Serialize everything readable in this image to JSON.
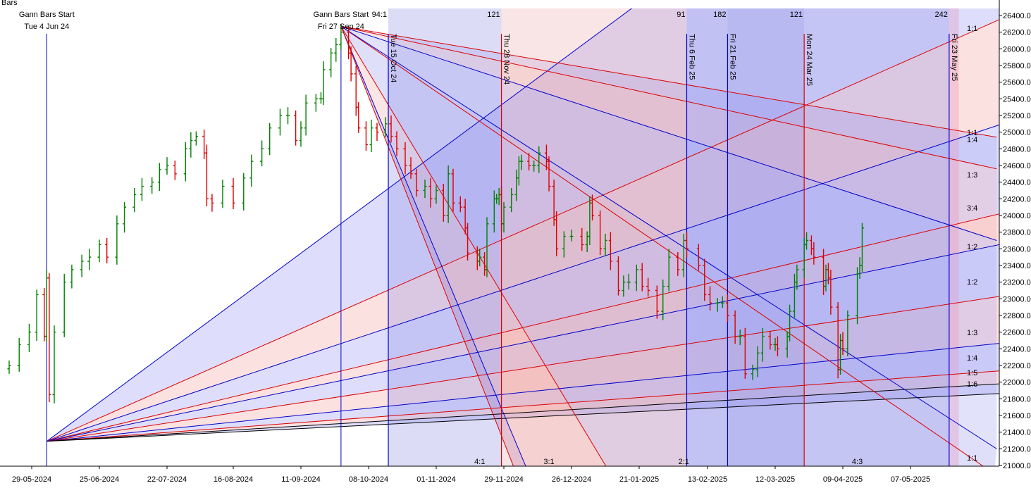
{
  "chart_data": {
    "type": "bar",
    "chart_style": "OHLC bars with Gann fans",
    "top_left_label": "Bars",
    "xlim": [
      "2024-05-18",
      "2025-05-31"
    ],
    "ylim": [
      20900,
      26500
    ],
    "y_axis": {
      "position": "right",
      "ticks": [
        21000,
        21200,
        21400,
        21600,
        21800,
        22000,
        22200,
        22400,
        22600,
        22800,
        23000,
        23200,
        23400,
        23600,
        23800,
        24000,
        24200,
        24400,
        24600,
        24800,
        25000,
        25200,
        25400,
        25600,
        25800,
        26000,
        26200,
        26400
      ],
      "tick_labels": [
        "21000.00",
        "21200.00",
        "21400.00",
        "21600.00",
        "21800.00",
        "22000.00",
        "22200.00",
        "22400.00",
        "22600.00",
        "22800.00",
        "23000.00",
        "23200.00",
        "23400.00",
        "23600.00",
        "23800.00",
        "24000.00",
        "24200.00",
        "24400.00",
        "24600.00",
        "24800.00",
        "25000.00",
        "25200.00",
        "25400.00",
        "25600.00",
        "25800.00",
        "26000.00",
        "26200.00",
        "26400.00"
      ]
    },
    "x_axis": {
      "tick_dates": [
        "2024-05-29",
        "2024-06-25",
        "2024-07-22",
        "2024-08-16",
        "2024-09-11",
        "2024-10-08",
        "2024-11-01",
        "2024-11-29",
        "2024-12-26",
        "2025-01-21",
        "2025-02-13",
        "2025-03-12",
        "2025-04-09",
        "2025-05-07"
      ],
      "tick_labels": [
        "29-05-2024",
        "25-06-2024",
        "22-07-2024",
        "16-08-2024",
        "11-09-2024",
        "08-10-2024",
        "01-11-2024",
        "29-11-2024",
        "26-12-2024",
        "21-01-2025",
        "13-02-2025",
        "12-03-2025",
        "09-04-2025",
        "07-05-2025"
      ]
    },
    "gann_starts": [
      {
        "title": "Gann Bars Start",
        "date_label": "Tue 4 Jun 24",
        "date": "2024-06-04",
        "price": 21290
      },
      {
        "title": "Gann Bars Start",
        "date_label": "Fri 27 Sep 24",
        "date": "2024-09-27",
        "price": 26270
      }
    ],
    "time_lines": [
      {
        "date": "2024-10-15",
        "label": "Tue 15 Oct 24",
        "color": "#0000cc"
      },
      {
        "date": "2024-11-28",
        "label": "Thu 28 Nov 24",
        "color": "#dd0000"
      },
      {
        "date": "2025-02-06",
        "label": "Thu 6 Feb 25",
        "color": "#0000cc"
      },
      {
        "date": "2025-02-21",
        "label": "Fri 21 Feb 25",
        "color": "#0000cc"
      },
      {
        "date": "2025-03-24",
        "label": "Mon 24 Mar 25",
        "color": "#dd0000"
      },
      {
        "date": "2025-05-23",
        "label": "Fri 23 May 25",
        "color": "#0000cc"
      }
    ],
    "bar_counts": [
      {
        "date": "2024-10-15",
        "label": "94:1"
      },
      {
        "date": "2024-11-28",
        "label": "121"
      },
      {
        "date": "2025-02-06",
        "label": "91"
      },
      {
        "date": "2025-02-21",
        "label": "182"
      },
      {
        "date": "2025-03-24",
        "label": "121"
      },
      {
        "date": "2025-05-23",
        "label": "242"
      }
    ],
    "bottom_fan_angles": {
      "ratios": [
        "4:1",
        "3:1",
        "2:1",
        "1:1",
        "4:3"
      ],
      "end_prices": [
        30000,
        26500,
        25200,
        24100,
        23720,
        23080,
        22500,
        22160,
        22000,
        21880
      ],
      "colors": [
        "#0000cc",
        "#dd0000",
        "#0000cc",
        "#dd0000",
        "#0000cc",
        "#dd0000",
        "#0000cc",
        "#dd0000",
        "#000000",
        "#000000"
      ]
    },
    "top_fan_angles": {
      "ratios": [
        "1:1",
        "1:4",
        "1:3",
        "3:4",
        "1:2",
        "1:2",
        "1:3",
        "1:4",
        "1:5",
        "1:6",
        "1:1",
        "1:1"
      ],
      "lines": [
        {
          "to_date": "2024-12-09",
          "to_price": 20900,
          "color": "#0000cc"
        },
        {
          "to_date": "2024-12-04",
          "to_price": 20900,
          "color": "#dd0000"
        },
        {
          "to_date": "2025-01-10",
          "to_price": 20900,
          "color": "#dd0000"
        },
        {
          "to_date": "2025-05-30",
          "to_price": 20900,
          "color": "#dd0000"
        },
        {
          "to_date": "2025-05-31",
          "to_price": 21200,
          "color": "#0000cc"
        },
        {
          "to_date": "2025-05-31",
          "to_price": 23700,
          "color": "#0000cc"
        },
        {
          "to_date": "2025-05-31",
          "to_price": 24560,
          "color": "#dd0000"
        },
        {
          "to_date": "2025-05-31",
          "to_price": 24940,
          "color": "#dd0000"
        }
      ]
    },
    "colors": {
      "up": "#008000",
      "down": "#dd0000",
      "blue_line": "#0000cc",
      "red_line": "#dd0000",
      "grid_bg": "#ffffff"
    },
    "daily_closes": [
      {
        "d": "2024-05-20",
        "c": 22200
      },
      {
        "d": "2024-05-24",
        "c": 22450
      },
      {
        "d": "2024-05-28",
        "c": 22600
      },
      {
        "d": "2024-05-31",
        "c": 23050
      },
      {
        "d": "2024-06-03",
        "c": 22550
      },
      {
        "d": "2024-06-04",
        "c": 23250
      },
      {
        "d": "2024-06-05",
        "c": 21850
      },
      {
        "d": "2024-06-07",
        "c": 22600
      },
      {
        "d": "2024-06-11",
        "c": 23200
      },
      {
        "d": "2024-06-14",
        "c": 23350
      },
      {
        "d": "2024-06-18",
        "c": 23450
      },
      {
        "d": "2024-06-21",
        "c": 23500
      },
      {
        "d": "2024-06-25",
        "c": 23650
      },
      {
        "d": "2024-06-28",
        "c": 23500
      },
      {
        "d": "2024-07-02",
        "c": 23900
      },
      {
        "d": "2024-07-05",
        "c": 24100
      },
      {
        "d": "2024-07-09",
        "c": 24250
      },
      {
        "d": "2024-07-12",
        "c": 24350
      },
      {
        "d": "2024-07-16",
        "c": 24400
      },
      {
        "d": "2024-07-19",
        "c": 24550
      },
      {
        "d": "2024-07-22",
        "c": 24600
      },
      {
        "d": "2024-07-25",
        "c": 24500
      },
      {
        "d": "2024-07-29",
        "c": 24800
      },
      {
        "d": "2024-07-31",
        "c": 24900
      },
      {
        "d": "2024-08-02",
        "c": 24950
      },
      {
        "d": "2024-08-05",
        "c": 24750
      },
      {
        "d": "2024-08-06",
        "c": 24200
      },
      {
        "d": "2024-08-08",
        "c": 24150
      },
      {
        "d": "2024-08-12",
        "c": 24350
      },
      {
        "d": "2024-08-16",
        "c": 24150
      },
      {
        "d": "2024-08-20",
        "c": 24450
      },
      {
        "d": "2024-08-23",
        "c": 24650
      },
      {
        "d": "2024-08-27",
        "c": 24800
      },
      {
        "d": "2024-08-30",
        "c": 25050
      },
      {
        "d": "2024-09-03",
        "c": 25200
      },
      {
        "d": "2024-09-06",
        "c": 25200
      },
      {
        "d": "2024-09-09",
        "c": 24900
      },
      {
        "d": "2024-09-11",
        "c": 25050
      },
      {
        "d": "2024-09-13",
        "c": 25350
      },
      {
        "d": "2024-09-17",
        "c": 25400
      },
      {
        "d": "2024-09-19",
        "c": 25400
      },
      {
        "d": "2024-09-20",
        "c": 25750
      },
      {
        "d": "2024-09-23",
        "c": 25950
      },
      {
        "d": "2024-09-25",
        "c": 26050
      },
      {
        "d": "2024-09-27",
        "c": 26200
      },
      {
        "d": "2024-09-30",
        "c": 25950
      },
      {
        "d": "2024-10-01",
        "c": 25700
      },
      {
        "d": "2024-10-03",
        "c": 25300
      },
      {
        "d": "2024-10-04",
        "c": 25050
      },
      {
        "d": "2024-10-07",
        "c": 24850
      },
      {
        "d": "2024-10-09",
        "c": 25050
      },
      {
        "d": "2024-10-11",
        "c": 25000
      },
      {
        "d": "2024-10-14",
        "c": 25100
      },
      {
        "d": "2024-10-16",
        "c": 24950
      },
      {
        "d": "2024-10-18",
        "c": 24800
      },
      {
        "d": "2024-10-21",
        "c": 24600
      },
      {
        "d": "2024-10-23",
        "c": 24500
      },
      {
        "d": "2024-10-25",
        "c": 24300
      },
      {
        "d": "2024-10-28",
        "c": 24350
      },
      {
        "d": "2024-10-30",
        "c": 24200
      },
      {
        "d": "2024-11-01",
        "c": 24300
      },
      {
        "d": "2024-11-04",
        "c": 24000
      },
      {
        "d": "2024-11-06",
        "c": 24500
      },
      {
        "d": "2024-11-08",
        "c": 24150
      },
      {
        "d": "2024-11-11",
        "c": 24100
      },
      {
        "d": "2024-11-13",
        "c": 23850
      },
      {
        "d": "2024-11-14",
        "c": 23550
      },
      {
        "d": "2024-11-18",
        "c": 23450
      },
      {
        "d": "2024-11-19",
        "c": 23500
      },
      {
        "d": "2024-11-21",
        "c": 23350
      },
      {
        "d": "2024-11-22",
        "c": 23900
      },
      {
        "d": "2024-11-25",
        "c": 24200
      },
      {
        "d": "2024-11-26",
        "c": 24200
      },
      {
        "d": "2024-11-27",
        "c": 24250
      },
      {
        "d": "2024-11-28",
        "c": 23900
      },
      {
        "d": "2024-11-29",
        "c": 24100
      },
      {
        "d": "2024-12-02",
        "c": 24250
      },
      {
        "d": "2024-12-04",
        "c": 24450
      },
      {
        "d": "2024-12-05",
        "c": 24650
      },
      {
        "d": "2024-12-06",
        "c": 24650
      },
      {
        "d": "2024-12-09",
        "c": 24600
      },
      {
        "d": "2024-12-11",
        "c": 24600
      },
      {
        "d": "2024-12-13",
        "c": 24750
      },
      {
        "d": "2024-12-16",
        "c": 24650
      },
      {
        "d": "2024-12-17",
        "c": 24350
      },
      {
        "d": "2024-12-19",
        "c": 23950
      },
      {
        "d": "2024-12-20",
        "c": 23600
      },
      {
        "d": "2024-12-23",
        "c": 23750
      },
      {
        "d": "2024-12-26",
        "c": 23750
      },
      {
        "d": "2024-12-30",
        "c": 23650
      },
      {
        "d": "2025-01-01",
        "c": 23750
      },
      {
        "d": "2025-01-02",
        "c": 24150
      },
      {
        "d": "2025-01-03",
        "c": 24000
      },
      {
        "d": "2025-01-06",
        "c": 23600
      },
      {
        "d": "2025-01-08",
        "c": 23700
      },
      {
        "d": "2025-01-10",
        "c": 23450
      },
      {
        "d": "2025-01-13",
        "c": 23100
      },
      {
        "d": "2025-01-15",
        "c": 23200
      },
      {
        "d": "2025-01-17",
        "c": 23200
      },
      {
        "d": "2025-01-20",
        "c": 23350
      },
      {
        "d": "2025-01-22",
        "c": 23150
      },
      {
        "d": "2025-01-24",
        "c": 23100
      },
      {
        "d": "2025-01-27",
        "c": 22850
      },
      {
        "d": "2025-01-29",
        "c": 23150
      },
      {
        "d": "2025-01-31",
        "c": 23500
      },
      {
        "d": "2025-02-03",
        "c": 23350
      },
      {
        "d": "2025-02-05",
        "c": 23700
      },
      {
        "d": "2025-02-06",
        "c": 23600
      },
      {
        "d": "2025-02-10",
        "c": 23400
      },
      {
        "d": "2025-02-12",
        "c": 23050
      },
      {
        "d": "2025-02-14",
        "c": 22950
      },
      {
        "d": "2025-02-17",
        "c": 22950
      },
      {
        "d": "2025-02-19",
        "c": 22950
      },
      {
        "d": "2025-02-21",
        "c": 22800
      },
      {
        "d": "2025-02-24",
        "c": 22550
      },
      {
        "d": "2025-02-26",
        "c": 22550
      },
      {
        "d": "2025-02-28",
        "c": 22100
      },
      {
        "d": "2025-03-03",
        "c": 22150
      },
      {
        "d": "2025-03-05",
        "c": 22350
      },
      {
        "d": "2025-03-07",
        "c": 22550
      },
      {
        "d": "2025-03-10",
        "c": 22450
      },
      {
        "d": "2025-03-12",
        "c": 22450
      },
      {
        "d": "2025-03-13",
        "c": 22400
      },
      {
        "d": "2025-03-17",
        "c": 22550
      },
      {
        "d": "2025-03-18",
        "c": 22850
      },
      {
        "d": "2025-03-20",
        "c": 23200
      },
      {
        "d": "2025-03-21",
        "c": 23350
      },
      {
        "d": "2025-03-24",
        "c": 23650
      },
      {
        "d": "2025-03-25",
        "c": 23700
      },
      {
        "d": "2025-03-27",
        "c": 23600
      },
      {
        "d": "2025-03-28",
        "c": 23500
      },
      {
        "d": "2025-04-01",
        "c": 23150
      },
      {
        "d": "2025-04-02",
        "c": 23350
      },
      {
        "d": "2025-04-03",
        "c": 23250
      },
      {
        "d": "2025-04-04",
        "c": 22900
      },
      {
        "d": "2025-04-07",
        "c": 22150
      },
      {
        "d": "2025-04-08",
        "c": 22500
      },
      {
        "d": "2025-04-09",
        "c": 22400
      },
      {
        "d": "2025-04-11",
        "c": 22800
      },
      {
        "d": "2025-04-15",
        "c": 23300
      },
      {
        "d": "2025-04-16",
        "c": 23400
      },
      {
        "d": "2025-04-17",
        "c": 23850
      }
    ]
  }
}
